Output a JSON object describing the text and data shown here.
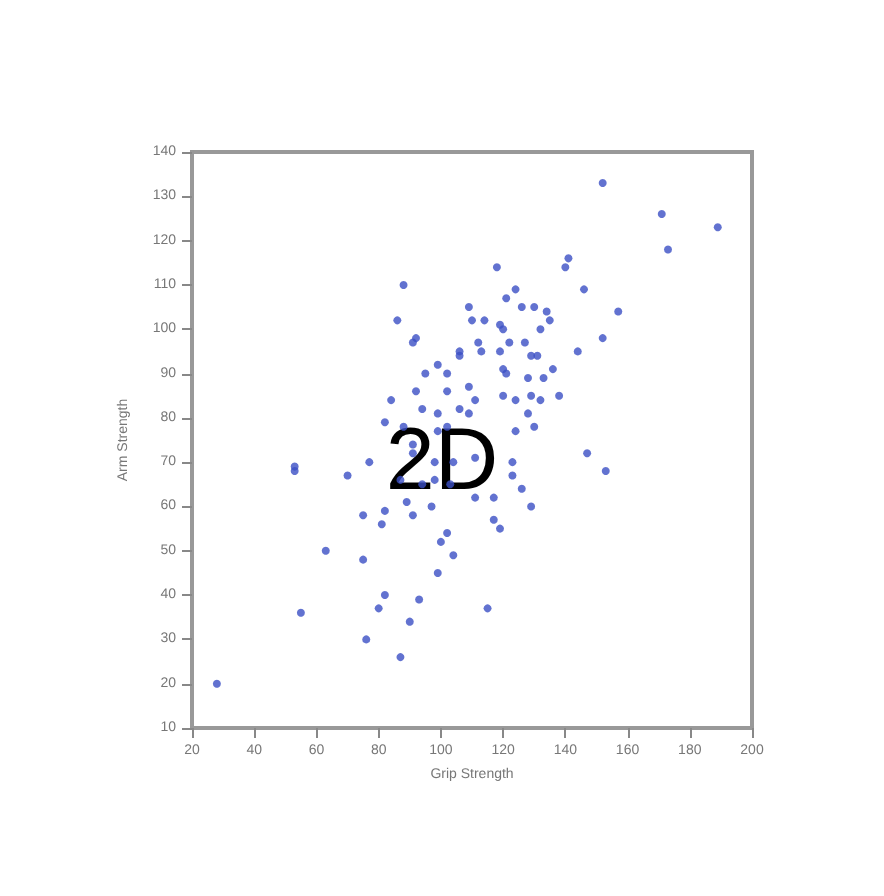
{
  "chart_data": {
    "type": "scatter",
    "xlabel": "Grip Strength",
    "ylabel": "Arm Strength",
    "annotations": [
      "2D"
    ],
    "x": [
      152,
      171,
      189,
      173,
      118,
      88,
      141,
      140,
      146,
      157,
      152,
      144,
      86,
      109,
      121,
      124,
      126,
      130,
      134,
      135,
      132,
      110,
      114,
      119,
      120,
      92,
      91,
      106,
      112,
      113,
      119,
      122,
      127,
      129,
      131,
      99,
      102,
      95,
      106,
      120,
      121,
      128,
      133,
      136,
      109,
      102,
      92,
      111,
      120,
      124,
      129,
      132,
      138,
      84,
      94,
      99,
      106,
      109,
      128,
      130,
      124,
      82,
      102,
      99,
      88,
      53,
      53,
      77,
      70,
      75,
      82,
      81,
      63,
      75,
      82,
      80,
      55,
      76,
      28,
      87,
      147,
      153,
      91,
      91,
      98,
      104,
      111,
      123,
      123,
      87,
      94,
      98,
      103,
      126,
      111,
      117,
      89,
      91,
      97,
      129,
      117,
      119,
      102,
      100,
      104,
      99,
      93,
      115,
      90
    ],
    "values": [
      133,
      126,
      123,
      118,
      114,
      110,
      116,
      114,
      109,
      104,
      98,
      95,
      102,
      105,
      107,
      109,
      105,
      105,
      104,
      102,
      100,
      102,
      102,
      101,
      100,
      98,
      97,
      95,
      97,
      95,
      95,
      97,
      97,
      94,
      94,
      92,
      90,
      90,
      94,
      91,
      90,
      89,
      89,
      91,
      87,
      86,
      86,
      84,
      85,
      84,
      85,
      84,
      85,
      84,
      82,
      81,
      82,
      81,
      81,
      78,
      77,
      79,
      78,
      77,
      78,
      69,
      68,
      70,
      67,
      58,
      59,
      56,
      50,
      48,
      40,
      37,
      36,
      30,
      20,
      26,
      72,
      68,
      74,
      72,
      70,
      70,
      71,
      70,
      67,
      66,
      65,
      66,
      65,
      64,
      62,
      62,
      61,
      58,
      60,
      60,
      57,
      55,
      54,
      52,
      49,
      45,
      39,
      37,
      34
    ],
    "color": "#3b4fc4",
    "marker": "circle",
    "grid": false,
    "xlim": [
      20,
      200
    ],
    "xticks": [
      20,
      40,
      60,
      80,
      100,
      120,
      140,
      160,
      180,
      200
    ],
    "ylim": [
      10,
      140
    ],
    "yticks": [
      10,
      20,
      30,
      40,
      50,
      60,
      70,
      80,
      90,
      100,
      110,
      120,
      130,
      140
    ]
  }
}
